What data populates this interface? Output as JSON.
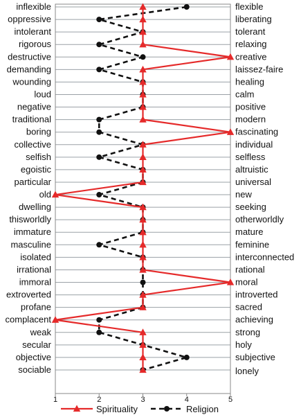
{
  "chart_data": {
    "type": "line",
    "title": "",
    "xlabel": "",
    "ylabel": "",
    "xlim": [
      1,
      5
    ],
    "x_ticks": [
      "1",
      "2",
      "3",
      "4",
      "5"
    ],
    "grid": "horizontal",
    "legend_position": "bottom",
    "left_labels": [
      "inflexible",
      "oppressive",
      "intolerant",
      "rigorous",
      "destructive",
      "demanding",
      "wounding",
      "loud",
      "negative",
      "traditional",
      "boring",
      "collective",
      "selfish",
      "egoistic",
      "particular",
      "old",
      "dwelling",
      "thisworldly",
      "immature",
      "masculine",
      "isolated",
      "irrational",
      "immoral",
      "extroverted",
      "profane",
      "complacent",
      "weak",
      "secular",
      "objective",
      "sociable"
    ],
    "right_labels": [
      "flexible",
      "liberating",
      "tolerant",
      "relaxing",
      "creative",
      "laissez-faire",
      "healing",
      "calm",
      "positive",
      "modern",
      "fascinating",
      "individual",
      "selfless",
      "altruistic",
      "universal",
      "new",
      "seeking",
      "otherworldly",
      "mature",
      "feminine",
      "interconnected",
      "rational",
      "moral",
      "introverted",
      "sacred",
      "achieving",
      "strong",
      "holy",
      "subjective",
      "lonely"
    ],
    "series": [
      {
        "name": "Spirituality",
        "color": "#e52a2a",
        "marker": "triangle",
        "line": "solid",
        "values": [
          3,
          3,
          3,
          3,
          5,
          3,
          3,
          3,
          3,
          3,
          5,
          3,
          3,
          3,
          3,
          1,
          3,
          3,
          3,
          3,
          3,
          3,
          5,
          3,
          3,
          1,
          3,
          3,
          3,
          3
        ]
      },
      {
        "name": "Religion",
        "color": "#111111",
        "marker": "circle",
        "line": "dashed",
        "values": [
          4,
          2,
          3,
          2,
          3,
          2,
          3,
          3,
          3,
          2,
          2,
          3,
          2,
          3,
          3,
          2,
          3,
          3,
          3,
          2,
          3,
          3,
          3,
          3,
          3,
          2,
          2,
          3,
          4,
          3
        ]
      }
    ]
  }
}
